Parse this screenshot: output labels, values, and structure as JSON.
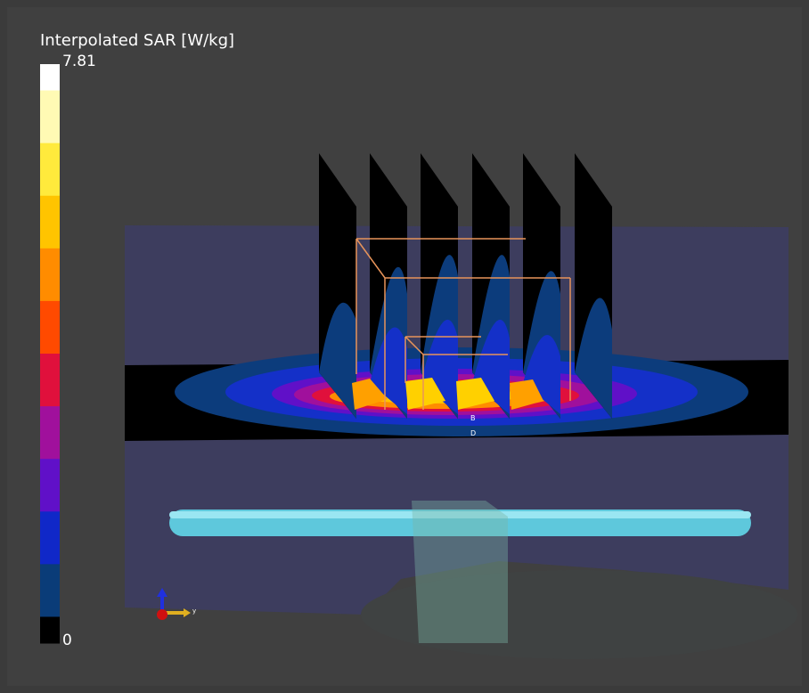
{
  "colorbar": {
    "title": "Interpolated SAR [W/kg]",
    "max": 7.81,
    "min": 0,
    "colors": [
      "#ffffff",
      "#fffab4",
      "#ffea3c",
      "#ffc400",
      "#ff8c00",
      "#ff4a00",
      "#e0103c",
      "#a0109c",
      "#6010c8",
      "#1028c8",
      "#0a3c78",
      "#000000"
    ]
  },
  "triad": {
    "label": "y"
  },
  "markers": [
    "B",
    "D"
  ]
}
